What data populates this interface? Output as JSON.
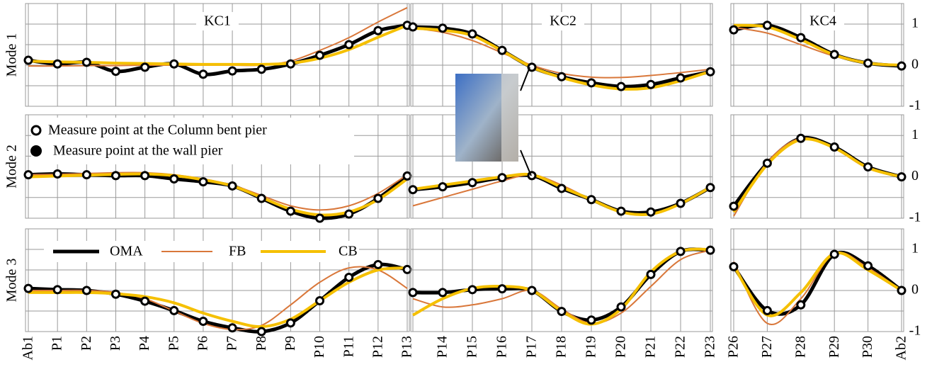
{
  "chart_data": [
    {
      "type": "line",
      "title": "KC1",
      "ylabel": "Mode 1",
      "categories": [
        "Ab1",
        "P1",
        "P2",
        "P3",
        "P4",
        "P5",
        "P6",
        "P7",
        "P8",
        "P9",
        "P10",
        "P11",
        "P12",
        "P13"
      ],
      "ylim": [
        -1,
        1.5
      ],
      "yticks": [
        -1,
        0,
        1
      ],
      "grid": true,
      "series": [
        {
          "name": "OMA",
          "color": "#000000",
          "values": [
            0.12,
            0.03,
            0.07,
            -0.15,
            -0.05,
            0.03,
            -0.22,
            -0.14,
            -0.1,
            0.03,
            0.24,
            0.5,
            0.84,
            0.97
          ]
        },
        {
          "name": "FB",
          "color": "#d9773a",
          "values": [
            -0.02,
            -0.02,
            -0.01,
            -0.01,
            0,
            0,
            0,
            0,
            0,
            0.1,
            0.36,
            0.67,
            1.05,
            1.4
          ]
        },
        {
          "name": "CB",
          "color": "#f5c000",
          "values": [
            0.1,
            0.08,
            0.07,
            0.05,
            0.04,
            0.03,
            0.02,
            0.02,
            0.02,
            0.05,
            0.17,
            0.38,
            0.68,
            0.97
          ]
        }
      ]
    },
    {
      "type": "line",
      "title": "KC2",
      "categories": [
        null,
        "P14",
        "P15",
        "P16",
        "P17",
        "P18",
        "P19",
        "P20",
        "P21",
        "P22",
        "P23"
      ],
      "ylim": [
        -1,
        1.5
      ],
      "yticks": [
        -1,
        0,
        1
      ],
      "grid": true,
      "series": [
        {
          "name": "OMA",
          "color": "#000000",
          "values": [
            0.93,
            0.9,
            0.76,
            0.36,
            -0.05,
            -0.28,
            -0.43,
            -0.52,
            -0.47,
            -0.31,
            -0.16
          ]
        },
        {
          "name": "FB",
          "color": "#d9773a",
          "values": [
            0.9,
            0.8,
            0.6,
            0.3,
            0,
            -0.2,
            -0.29,
            -0.3,
            -0.25,
            -0.18,
            -0.1
          ]
        },
        {
          "name": "CB",
          "color": "#f5c000",
          "values": [
            0.9,
            0.85,
            0.72,
            0.35,
            -0.05,
            -0.3,
            -0.48,
            -0.58,
            -0.55,
            -0.38,
            -0.15
          ]
        }
      ]
    },
    {
      "type": "line",
      "title": "KC4",
      "categories": [
        "P26",
        "P27",
        "P28",
        "P29",
        "P30",
        "Ab2"
      ],
      "ylim": [
        -1,
        1.5
      ],
      "yticks": [
        -1,
        0,
        1
      ],
      "grid": true,
      "series": [
        {
          "name": "OMA",
          "color": "#000000",
          "values": [
            0.86,
            0.97,
            0.67,
            0.26,
            0.05,
            -0.02
          ]
        },
        {
          "name": "FB",
          "color": "#d9773a",
          "values": [
            0.92,
            0.78,
            0.5,
            0.22,
            0.05,
            0
          ]
        },
        {
          "name": "CB",
          "color": "#f5c000",
          "values": [
            0.97,
            0.93,
            0.62,
            0.25,
            0.05,
            0
          ]
        }
      ]
    },
    {
      "type": "line",
      "ylabel": "Mode 2",
      "annotations": [
        "Measure point at the Column bent pier",
        "Measure point at the wall pier"
      ],
      "categories": [
        "Ab1",
        "P1",
        "P2",
        "P3",
        "P4",
        "P5",
        "P6",
        "P7",
        "P8",
        "P9",
        "P10",
        "P11",
        "P12",
        "P13"
      ],
      "ylim": [
        -1,
        1.5
      ],
      "yticks": [
        -1,
        0,
        1
      ],
      "grid": true,
      "series": [
        {
          "name": "OMA",
          "color": "#000000",
          "values": [
            0.05,
            0.07,
            0.05,
            0.03,
            0.03,
            -0.05,
            -0.12,
            -0.22,
            -0.52,
            -0.83,
            -1.0,
            -0.9,
            -0.52,
            0.02
          ]
        },
        {
          "name": "FB",
          "color": "#d9773a",
          "values": [
            0.05,
            0.06,
            0.08,
            0.1,
            0.1,
            0.05,
            -0.05,
            -0.2,
            -0.45,
            -0.7,
            -0.8,
            -0.7,
            -0.4,
            0.05
          ]
        },
        {
          "name": "CB",
          "color": "#f5c000",
          "values": [
            0,
            0.02,
            0.04,
            0.06,
            0.07,
            0.03,
            -0.07,
            -0.22,
            -0.5,
            -0.78,
            -0.92,
            -0.85,
            -0.55,
            -0.05
          ]
        }
      ]
    },
    {
      "type": "line",
      "categories": [
        null,
        "P14",
        "P15",
        "P16",
        "P17",
        "P18",
        "P19",
        "P20",
        "P21",
        "P22",
        "P23"
      ],
      "ylim": [
        -1,
        1.5
      ],
      "yticks": [
        -1,
        0,
        1
      ],
      "grid": true,
      "series": [
        {
          "name": "OMA",
          "color": "#000000",
          "values": [
            -0.31,
            -0.24,
            -0.14,
            -0.02,
            0.03,
            -0.28,
            -0.55,
            -0.83,
            -0.85,
            -0.64,
            -0.26
          ]
        },
        {
          "name": "FB",
          "color": "#d9773a",
          "values": [
            -0.7,
            -0.5,
            -0.3,
            -0.1,
            0.05,
            -0.2,
            -0.55,
            -0.85,
            -0.9,
            -0.65,
            -0.25
          ]
        },
        {
          "name": "CB",
          "color": "#f5c000",
          "values": [
            -0.3,
            -0.2,
            -0.1,
            0,
            0.05,
            -0.25,
            -0.55,
            -0.85,
            -0.9,
            -0.65,
            -0.25
          ]
        }
      ]
    },
    {
      "type": "line",
      "categories": [
        "P26",
        "P27",
        "P28",
        "P29",
        "P30",
        "Ab2"
      ],
      "ylim": [
        -1,
        1.5
      ],
      "yticks": [
        -1,
        0,
        1
      ],
      "grid": true,
      "series": [
        {
          "name": "OMA",
          "color": "#000000",
          "values": [
            -0.71,
            0.33,
            0.93,
            0.72,
            0.24,
            0
          ]
        },
        {
          "name": "FB",
          "color": "#d9773a",
          "values": [
            -0.95,
            0.35,
            0.93,
            0.68,
            0.2,
            0
          ]
        },
        {
          "name": "CB",
          "color": "#f5c000",
          "values": [
            -0.85,
            0.3,
            0.9,
            0.7,
            0.22,
            0
          ]
        }
      ]
    },
    {
      "type": "line",
      "ylabel": "Mode 3",
      "legend": true,
      "categories": [
        "Ab1",
        "P1",
        "P2",
        "P3",
        "P4",
        "P5",
        "P6",
        "P7",
        "P8",
        "P9",
        "P10",
        "P11",
        "P12",
        "P13"
      ],
      "ylim": [
        -1,
        1.5
      ],
      "yticks": [
        -1,
        0,
        1
      ],
      "grid": true,
      "series": [
        {
          "name": "OMA",
          "color": "#000000",
          "values": [
            0.05,
            0.02,
            0,
            -0.09,
            -0.26,
            -0.49,
            -0.75,
            -0.91,
            -1.0,
            -0.79,
            -0.25,
            0.32,
            0.63,
            0.51
          ]
        },
        {
          "name": "FB",
          "color": "#d9773a",
          "values": [
            0,
            0,
            0,
            -0.05,
            -0.2,
            -0.5,
            -0.8,
            -0.95,
            -0.85,
            -0.35,
            0.2,
            0.55,
            0.5,
            0.05
          ]
        },
        {
          "name": "CB",
          "color": "#f5c000",
          "values": [
            -0.05,
            -0.05,
            -0.05,
            -0.08,
            -0.15,
            -0.3,
            -0.55,
            -0.75,
            -0.88,
            -0.7,
            -0.25,
            0.2,
            0.5,
            0.55
          ]
        }
      ]
    },
    {
      "type": "line",
      "categories": [
        null,
        "P14",
        "P15",
        "P16",
        "P17",
        "P18",
        "P19",
        "P20",
        "P21",
        "P22",
        "P23"
      ],
      "ylim": [
        -1,
        1.5
      ],
      "yticks": [
        -1,
        0,
        1
      ],
      "grid": true,
      "series": [
        {
          "name": "OMA",
          "color": "#000000",
          "values": [
            -0.05,
            -0.05,
            0.02,
            0.04,
            0,
            -0.51,
            -0.72,
            -0.4,
            0.39,
            0.95,
            0.98
          ]
        },
        {
          "name": "FB",
          "color": "#d9773a",
          "values": [
            -0.2,
            -0.4,
            -0.35,
            -0.2,
            0,
            -0.45,
            -0.8,
            -0.55,
            0.1,
            0.75,
            0.98
          ]
        },
        {
          "name": "CB",
          "color": "#f5c000",
          "values": [
            -0.6,
            -0.2,
            0.05,
            0.1,
            0,
            -0.5,
            -0.82,
            -0.45,
            0.45,
            0.95,
            1.0
          ]
        }
      ]
    },
    {
      "type": "line",
      "categories": [
        "P26",
        "P27",
        "P28",
        "P29",
        "P30",
        "Ab2"
      ],
      "ylim": [
        -1,
        1.5
      ],
      "yticks": [
        -1,
        0,
        1
      ],
      "grid": true,
      "series": [
        {
          "name": "OMA",
          "color": "#000000",
          "values": [
            0.58,
            -0.49,
            -0.35,
            0.88,
            0.6,
            0
          ]
        },
        {
          "name": "FB",
          "color": "#d9773a",
          "values": [
            0.7,
            -0.8,
            -0.2,
            0.9,
            0.55,
            0
          ]
        },
        {
          "name": "CB",
          "color": "#f5c000",
          "values": [
            0.6,
            -0.6,
            -0.05,
            0.9,
            0.5,
            0
          ]
        }
      ]
    }
  ]
}
